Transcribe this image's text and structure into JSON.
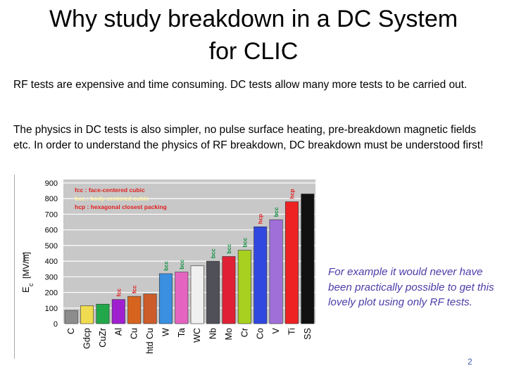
{
  "slide": {
    "title_line1": "Why study breakdown in a DC System",
    "title_line2": "for CLIC",
    "paragraph1": "RF tests are expensive and time consuming.  DC tests allow many more tests to be carried out.",
    "paragraph2": "The physics in DC tests is also simpler, no pulse surface heating, pre-breakdown magnetic fields etc.  In order to understand the physics of RF breakdown, DC breakdown must be understood first!",
    "note": "For example it would never have been practically possible to get this lovely plot using only RF tests.",
    "page_number": "2"
  },
  "chart_data": {
    "type": "bar",
    "title": "",
    "xlabel": "",
    "ylabel": "E_c [MV/m]",
    "ylabel_main": "E",
    "ylabel_sub": "c",
    "ylabel_unit": "[MV/m]",
    "ylim": [
      0,
      900
    ],
    "yticks": [
      0,
      100,
      200,
      300,
      400,
      500,
      600,
      700,
      800,
      900
    ],
    "grid": true,
    "categories": [
      "C",
      "Gdcp",
      "CuZr",
      "Al",
      "Cu",
      "htd Cu",
      "W",
      "Ta",
      "WC",
      "Nb",
      "Mo",
      "Cr",
      "Co",
      "V",
      "Ti",
      "SS"
    ],
    "values": [
      85,
      115,
      125,
      155,
      175,
      190,
      320,
      330,
      370,
      400,
      430,
      470,
      620,
      665,
      780,
      830
    ],
    "colors": [
      "#8c8c8c",
      "#f0dc50",
      "#22a84a",
      "#a020d0",
      "#d6641e",
      "#cc5c2a",
      "#3a8fe0",
      "#e464c0",
      "#f0f0f0",
      "#505058",
      "#e02034",
      "#a8d020",
      "#3048e0",
      "#a070d8",
      "#ee2222",
      "#111111"
    ],
    "structure_labels": [
      "",
      "",
      "",
      "fcc",
      "fcc",
      "",
      "bcc",
      "bcc",
      "",
      "bcc",
      "bcc",
      "bcc",
      "hcp",
      "bcc",
      "hcp",
      ""
    ],
    "structure_colors": {
      "fcc": "#e02020",
      "bcc": "#109040",
      "hcp": "#e02020"
    },
    "legend": {
      "placement": "top-left",
      "entries": [
        {
          "text": "fcc : face-centered cubic",
          "color": "#e02020"
        },
        {
          "text": "bcc : body-centered cubic",
          "color": "#fff2a0"
        },
        {
          "text": "hcp : hexagonal closest packing",
          "color": "#e02020"
        }
      ]
    }
  }
}
